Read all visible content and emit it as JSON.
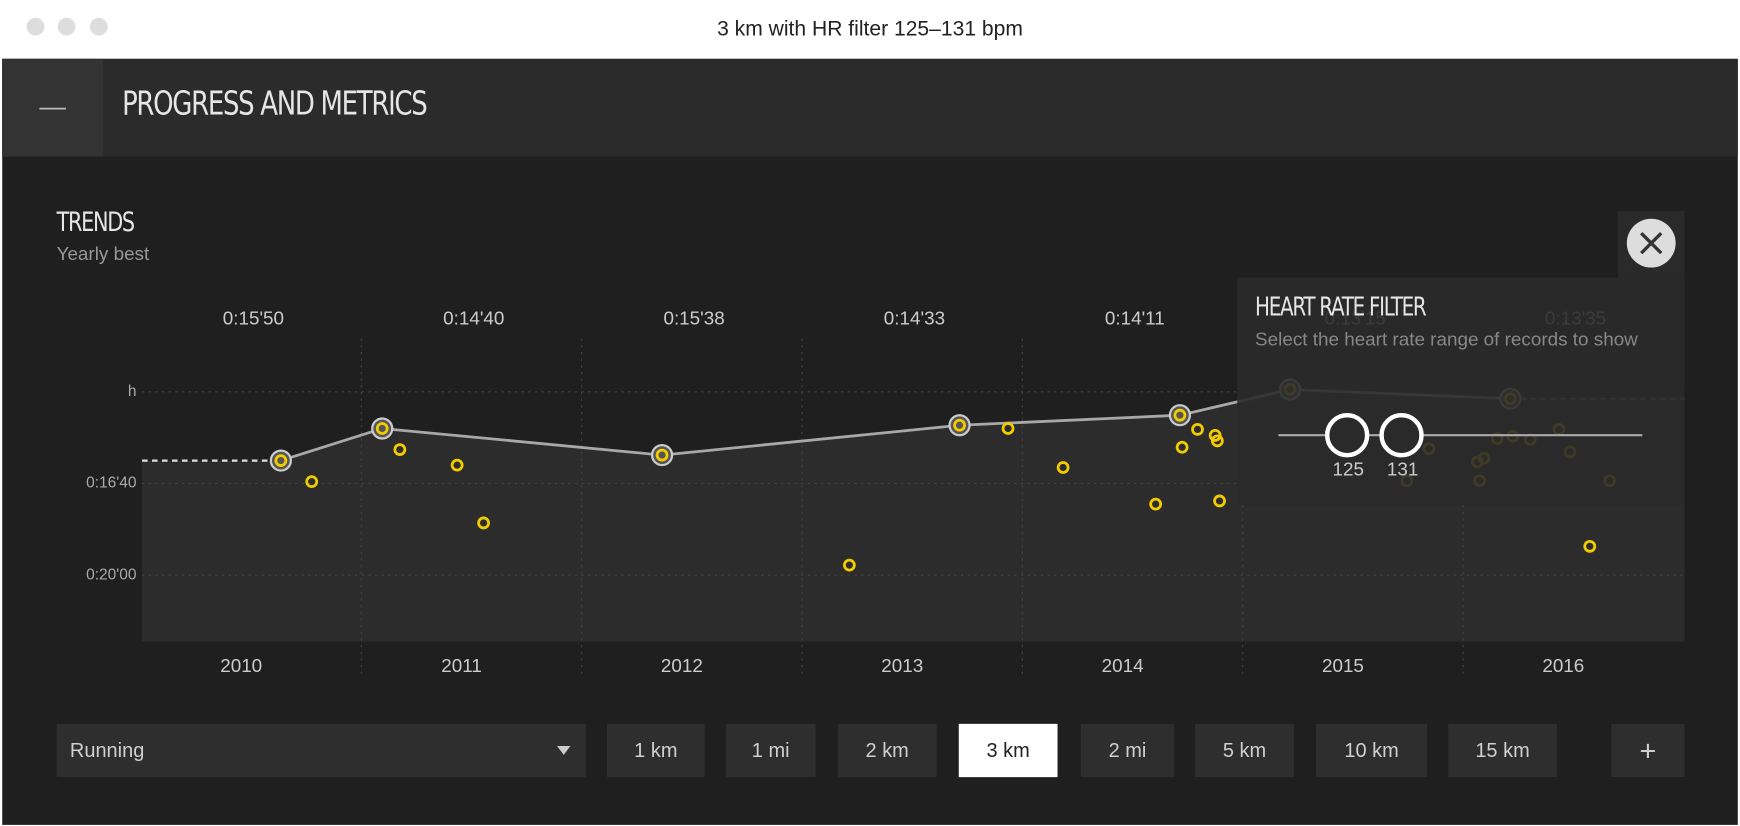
{
  "window": {
    "title": "3 km with HR filter 125–131 bpm"
  },
  "header": {
    "collapse": "—",
    "title": "PROGRESS AND METRICS"
  },
  "trends": {
    "title": "TRENDS",
    "subtitle": "Yearly best"
  },
  "chart_data": {
    "type": "scatter",
    "xlim": [
      2009.55,
      2016.55
    ],
    "xticks": [
      2010,
      2011,
      2012,
      2013,
      2014,
      2015,
      2016
    ],
    "ylim": [
      1345,
      684
    ],
    "yticks": [
      {
        "value": 800,
        "label": "h"
      },
      {
        "value": 1000,
        "label": "0:16'40"
      },
      {
        "value": 1200,
        "label": "0:20'00"
      }
    ],
    "grid": true,
    "series": [
      {
        "type": "line",
        "color": "#a8a8a8",
        "x": [
          2010.18,
          2010.64,
          2011.91,
          2013.26,
          2014.26,
          2014.76,
          2015.76
        ],
        "values": [
          950,
          880,
          938,
          873,
          851,
          795,
          815
        ],
        "value_labels": [
          "0:15'50",
          "0:14'40",
          "0:15'38",
          "0:14'33",
          "0:14'11",
          "0:13'15",
          "0:13'35"
        ]
      },
      {
        "type": "scatter",
        "color": "#f2cc00",
        "x": [
          2010.32,
          2010.72,
          2010.98,
          2011.1,
          2012.76,
          2013.48,
          2013.73,
          2014.15,
          2014.27,
          2014.34,
          2014.42,
          2014.43,
          2014.44,
          2015.29,
          2015.39,
          2015.61,
          2015.62,
          2015.64,
          2015.7,
          2015.77,
          2015.85,
          2015.98,
          2016.03,
          2016.12,
          2016.21
        ],
        "values": [
          996,
          926,
          960,
          1086,
          1178,
          880,
          965,
          1045,
          921,
          882,
          895,
          907,
          1038,
          994,
          924,
          953,
          994,
          945,
          902,
          897,
          904,
          882,
          931,
          1137,
          994
        ]
      }
    ]
  },
  "hr_filter": {
    "title": "HEART RATE FILTER",
    "description": "Select the heart rate range of records to show",
    "min": 125,
    "max": 131
  },
  "controls": {
    "sport": "Running",
    "distances": [
      "1 km",
      "1 mi",
      "2 km",
      "3 km",
      "2 mi",
      "5 km",
      "10 km",
      "15 km"
    ],
    "selected": 3,
    "add": "+"
  }
}
